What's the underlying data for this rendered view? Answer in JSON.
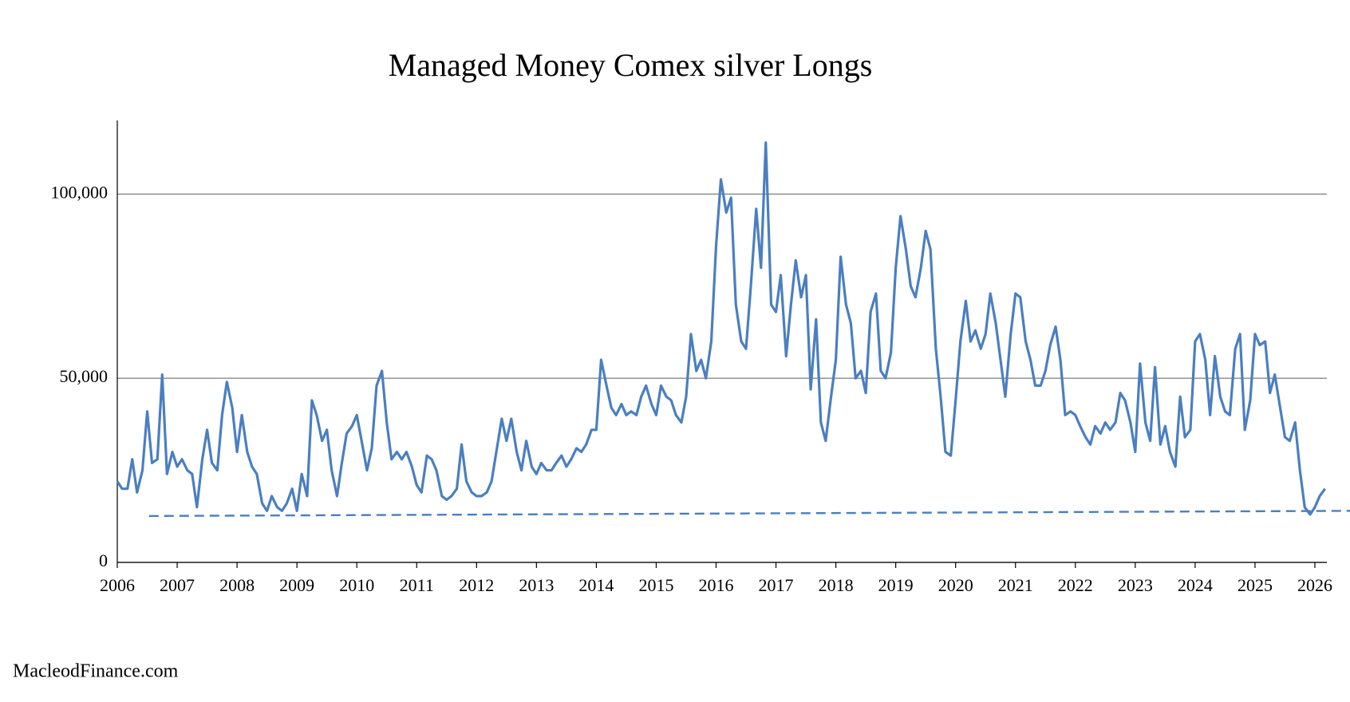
{
  "chart_data": {
    "type": "line",
    "title": "Managed Money Comex silver Longs",
    "footer": "MacleodFinance.com",
    "xlim": [
      2006,
      2026.2
    ],
    "xticks": [
      2006,
      2007,
      2008,
      2009,
      2010,
      2011,
      2012,
      2013,
      2014,
      2015,
      2016,
      2017,
      2018,
      2019,
      2020,
      2021,
      2022,
      2023,
      2024,
      2025,
      2026
    ],
    "ylim": [
      0,
      120000
    ],
    "yticks": [
      0,
      {
        "value": 50000,
        "label": "50,000"
      },
      {
        "value": 100000,
        "label": "100,000"
      }
    ],
    "grid": true,
    "series": [
      {
        "color": "#4a7fc1",
        "dashed": false,
        "x": [
          2006,
          2006.08,
          2006.17,
          2006.25,
          2006.33,
          2006.42,
          2006.5,
          2006.58,
          2006.67,
          2006.75,
          2006.83,
          2006.92,
          2007,
          2007.08,
          2007.17,
          2007.25,
          2007.33,
          2007.42,
          2007.5,
          2007.58,
          2007.67,
          2007.75,
          2007.83,
          2007.92,
          2008,
          2008.08,
          2008.17,
          2008.25,
          2008.33,
          2008.42,
          2008.5,
          2008.58,
          2008.67,
          2008.75,
          2008.83,
          2008.92,
          2009,
          2009.08,
          2009.17,
          2009.25,
          2009.33,
          2009.42,
          2009.5,
          2009.58,
          2009.67,
          2009.75,
          2009.83,
          2009.92,
          2010,
          2010.08,
          2010.17,
          2010.25,
          2010.33,
          2010.42,
          2010.5,
          2010.58,
          2010.67,
          2010.75,
          2010.83,
          2010.92,
          2011,
          2011.08,
          2011.17,
          2011.25,
          2011.33,
          2011.42,
          2011.5,
          2011.58,
          2011.67,
          2011.75,
          2011.83,
          2011.92,
          2012,
          2012.08,
          2012.17,
          2012.25,
          2012.33,
          2012.42,
          2012.5,
          2012.58,
          2012.67,
          2012.75,
          2012.83,
          2012.92,
          2013,
          2013.08,
          2013.17,
          2013.25,
          2013.33,
          2013.42,
          2013.5,
          2013.58,
          2013.67,
          2013.75,
          2013.83,
          2013.92,
          2014,
          2014.08,
          2014.17,
          2014.25,
          2014.33,
          2014.42,
          2014.5,
          2014.58,
          2014.67,
          2014.75,
          2014.83,
          2014.92,
          2015,
          2015.08,
          2015.17,
          2015.25,
          2015.33,
          2015.42,
          2015.5,
          2015.58,
          2015.67,
          2015.75,
          2015.83,
          2015.92,
          2016,
          2016.08,
          2016.17,
          2016.25,
          2016.33,
          2016.42,
          2016.5,
          2016.58,
          2016.67,
          2016.75,
          2016.83,
          2016.92,
          2017,
          2017.08,
          2017.17,
          2017.25,
          2017.33,
          2017.42,
          2017.5,
          2017.58,
          2017.67,
          2017.75,
          2017.83,
          2017.92,
          2018,
          2018.08,
          2018.17,
          2018.25,
          2018.33,
          2018.42,
          2018.5,
          2018.58,
          2018.67,
          2018.75,
          2018.83,
          2018.92,
          2019,
          2019.08,
          2019.17,
          2019.25,
          2019.33,
          2019.42,
          2019.5,
          2019.58,
          2019.67,
          2019.75,
          2019.83,
          2019.92,
          2020,
          2020.08,
          2020.17,
          2020.25,
          2020.33,
          2020.42,
          2020.5,
          2020.58,
          2020.67,
          2020.75,
          2020.83,
          2020.92,
          2021,
          2021.08,
          2021.17,
          2021.25,
          2021.33,
          2021.42,
          2021.5,
          2021.58,
          2021.67,
          2021.75,
          2021.83,
          2021.92,
          2022,
          2022.08,
          2022.17,
          2022.25,
          2022.33,
          2022.42,
          2022.5,
          2022.58,
          2022.67,
          2022.75,
          2022.83,
          2022.92,
          2023,
          2023.08,
          2023.17,
          2023.25,
          2023.33,
          2023.42,
          2023.5,
          2023.58,
          2023.67,
          2023.75,
          2023.83,
          2023.92,
          2024,
          2024.08,
          2024.17,
          2024.25,
          2024.33,
          2024.42,
          2024.5,
          2024.58,
          2024.67,
          2024.75,
          2024.83,
          2024.92,
          2025,
          2025.08,
          2025.17,
          2025.25,
          2025.33,
          2025.42,
          2025.5,
          2025.58,
          2025.67,
          2025.75,
          2025.83,
          2025.92,
          2026,
          2026.08,
          2026.17
        ],
        "values": [
          22000,
          20000,
          20000,
          28000,
          19000,
          25000,
          41000,
          27000,
          28000,
          51000,
          24000,
          30000,
          26000,
          28000,
          25000,
          24000,
          15000,
          28000,
          36000,
          27000,
          25000,
          40000,
          49000,
          42000,
          30000,
          40000,
          30000,
          26000,
          24000,
          16000,
          14000,
          18000,
          15000,
          14000,
          16000,
          20000,
          14000,
          24000,
          18000,
          44000,
          40000,
          33000,
          36000,
          25000,
          18000,
          27000,
          35000,
          37000,
          40000,
          33000,
          25000,
          31000,
          48000,
          52000,
          38000,
          28000,
          30000,
          28000,
          30000,
          26000,
          21000,
          19000,
          29000,
          28000,
          25000,
          18000,
          17000,
          18000,
          20000,
          32000,
          22000,
          19000,
          18000,
          18000,
          19000,
          22000,
          30000,
          39000,
          33000,
          39000,
          30000,
          25000,
          33000,
          26000,
          24000,
          27000,
          25000,
          25000,
          27000,
          29000,
          26000,
          28000,
          31000,
          30000,
          32000,
          36000,
          36000,
          55000,
          48000,
          42000,
          40000,
          43000,
          40000,
          41000,
          40000,
          45000,
          48000,
          43000,
          40000,
          48000,
          45000,
          44000,
          40000,
          38000,
          45000,
          62000,
          52000,
          55000,
          50000,
          60000,
          86000,
          104000,
          95000,
          99000,
          70000,
          60000,
          58000,
          75000,
          96000,
          80000,
          114000,
          70000,
          68000,
          78000,
          56000,
          70000,
          82000,
          72000,
          78000,
          47000,
          66000,
          38000,
          33000,
          45000,
          55000,
          83000,
          70000,
          65000,
          50000,
          52000,
          46000,
          68000,
          73000,
          52000,
          50000,
          57000,
          80000,
          94000,
          85000,
          75000,
          72000,
          80000,
          90000,
          85000,
          58000,
          45000,
          30000,
          29000,
          44000,
          60000,
          71000,
          60000,
          63000,
          58000,
          62000,
          73000,
          65000,
          55000,
          45000,
          62000,
          73000,
          72000,
          60000,
          55000,
          48000,
          48000,
          52000,
          59000,
          64000,
          55000,
          40000,
          41000,
          40000,
          37000,
          34000,
          32000,
          37000,
          35000,
          38000,
          36000,
          38000,
          46000,
          44000,
          38000,
          30000,
          54000,
          38000,
          33000,
          53000,
          32000,
          37000,
          30000,
          26000,
          45000,
          34000,
          36000,
          60000,
          62000,
          55000,
          40000,
          56000,
          45000,
          41000,
          40000,
          58000,
          62000,
          36000,
          44000,
          62000,
          59000,
          60000,
          46000,
          51000,
          42000,
          34000,
          33000,
          38000,
          25000,
          15000,
          13000,
          15000,
          18000,
          20000
        ]
      },
      {
        "color": "#4a7fc1",
        "dashed": true,
        "x": [
          2006.53,
          2026.59
        ],
        "values": [
          12600,
          14000
        ]
      }
    ]
  }
}
